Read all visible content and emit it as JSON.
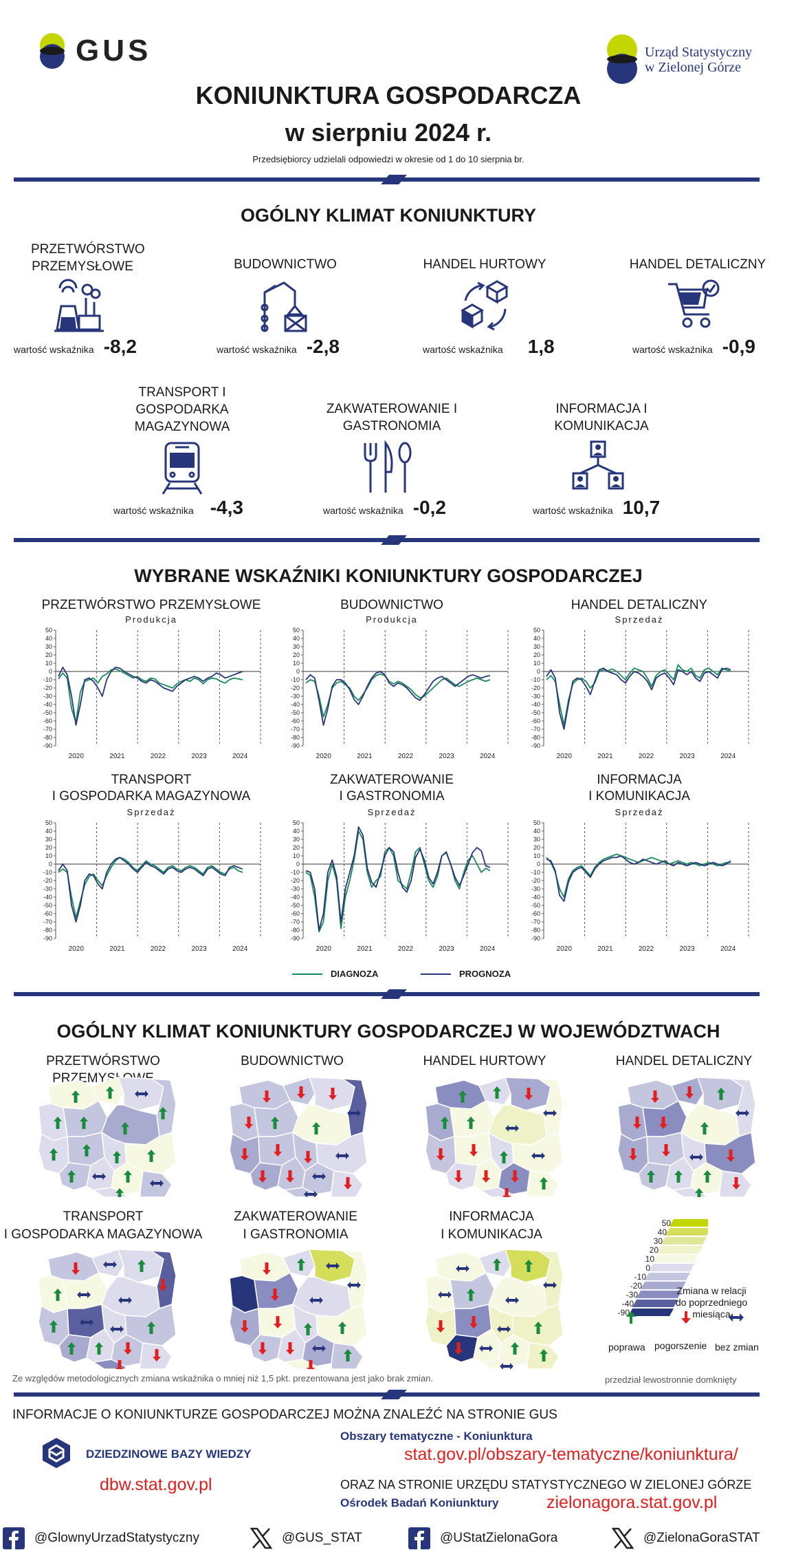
{
  "header": {
    "gus_logo_text": "GUS",
    "us_logo_line1": "Urząd Statystyczny",
    "us_logo_line2": "w Zielonej Górze",
    "title_line1": "KONIUNKTURA GOSPODARCZA",
    "title_line2": "w sierpniu 2024 r.",
    "subtitle": "Przedsiębiorcy udzielali odpowiedzi w okresie od 1 do 10 sierpnia br."
  },
  "climate": {
    "title": "OGÓLNY KLIMAT KONIUNKTURY",
    "value_label": "wartość wskaźnika",
    "sectors": [
      {
        "label": "PRZETWÓRSTWO PRZEMYSŁOWE",
        "value": "-8,2"
      },
      {
        "label": "BUDOWNICTWO",
        "value": "-2,8"
      },
      {
        "label": "HANDEL HURTOWY",
        "value": "1,8"
      },
      {
        "label": "HANDEL DETALICZNY",
        "value": "-0,9"
      },
      {
        "label": "TRANSPORT I GOSPODARKA MAGAZYNOWA",
        "value": "-4,3"
      },
      {
        "label": "ZAKWATEROWANIE I GASTRONOMIA",
        "value": "-0,2"
      },
      {
        "label": "INFORMACJA I KOMUNIKACJA",
        "value": "10,7"
      }
    ]
  },
  "indicators": {
    "title": "WYBRANE WSKAŹNIKI KONIUNKTURY GOSPODARCZEJ",
    "legend_diag": "DIAGNOZA",
    "legend_prog": "PROGNOZA",
    "charts": [
      {
        "title_l1": "PRZETWÓRSTWO PRZEMYSŁOWE",
        "title_l2": "",
        "sub": "Produkcja"
      },
      {
        "title_l1": "BUDOWNICTWO",
        "title_l2": "",
        "sub": "Produkcja"
      },
      {
        "title_l1": "HANDEL DETALICZNY",
        "title_l2": "",
        "sub": "Sprzedaż"
      },
      {
        "title_l1": "TRANSPORT",
        "title_l2": "I GOSPODARKA MAGAZYNOWA",
        "sub": "Sprzedaż"
      },
      {
        "title_l1": "ZAKWATEROWANIE",
        "title_l2": "I GASTRONOMIA",
        "sub": "Sprzedaż"
      },
      {
        "title_l1": "INFORMACJA",
        "title_l2": "I KOMUNIKACJA",
        "sub": "Sprzedaż"
      }
    ]
  },
  "chart_data": [
    {
      "type": "line",
      "title": "PRZETWÓRSTWO PRZEMYSŁOWE – Produkcja",
      "ylim": [
        -90,
        50
      ],
      "yticks": [
        50,
        40,
        30,
        20,
        10,
        0,
        -10,
        -20,
        -30,
        -40,
        -50,
        -60,
        -70,
        -80,
        -90
      ],
      "xticks": [
        "2020",
        "2021",
        "2022",
        "2023",
        "2024"
      ],
      "series": [
        {
          "name": "DIAGNOZA",
          "values": [
            -9,
            -2,
            -8,
            -45,
            -62,
            -25,
            -12,
            -10,
            -8,
            -14,
            -6,
            -3,
            2,
            3,
            1,
            -2,
            -5,
            -8,
            -6,
            -10,
            -12,
            -8,
            -9,
            -14,
            -16,
            -18,
            -20,
            -15,
            -12,
            -10,
            -12,
            -8,
            -10,
            -15,
            -10,
            -8,
            -9,
            -12,
            -14,
            -10,
            -8,
            -9,
            -10
          ]
        },
        {
          "name": "PROGNOZA",
          "values": [
            -6,
            5,
            -4,
            -30,
            -65,
            -40,
            -10,
            -8,
            -12,
            -20,
            -30,
            -10,
            0,
            5,
            4,
            0,
            -3,
            -6,
            -8,
            -12,
            -14,
            -10,
            -12,
            -16,
            -20,
            -22,
            -24,
            -18,
            -14,
            -10,
            -8,
            -6,
            -8,
            -12,
            -8,
            -6,
            -2,
            -4,
            -8,
            -6,
            -4,
            -2,
            0
          ]
        }
      ]
    },
    {
      "type": "line",
      "title": "BUDOWNICTWO – Produkcja",
      "ylim": [
        -90,
        50
      ],
      "yticks": [
        50,
        40,
        30,
        20,
        10,
        0,
        -10,
        -20,
        -30,
        -40,
        -50,
        -60,
        -70,
        -80,
        -90
      ],
      "xticks": [
        "2020",
        "2021",
        "2022",
        "2023",
        "2024"
      ],
      "series": [
        {
          "name": "DIAGNOZA",
          "values": [
            -14,
            -10,
            -12,
            -30,
            -55,
            -40,
            -20,
            -14,
            -12,
            -16,
            -20,
            -30,
            -35,
            -28,
            -20,
            -10,
            -5,
            -3,
            -5,
            -12,
            -15,
            -12,
            -14,
            -18,
            -22,
            -28,
            -32,
            -30,
            -25,
            -20,
            -15,
            -10,
            -8,
            -12,
            -16,
            -18,
            -15,
            -12,
            -10,
            -8,
            -10,
            -12,
            -10
          ]
        },
        {
          "name": "PROGNOZA",
          "values": [
            -10,
            -4,
            -8,
            -35,
            -65,
            -45,
            -18,
            -10,
            -10,
            -14,
            -22,
            -34,
            -40,
            -30,
            -18,
            -8,
            -2,
            0,
            -4,
            -14,
            -18,
            -14,
            -16,
            -20,
            -26,
            -32,
            -35,
            -28,
            -20,
            -12,
            -8,
            -6,
            -10,
            -14,
            -18,
            -14,
            -10,
            -6,
            -4,
            -6,
            -8,
            -6,
            -5
          ]
        }
      ]
    },
    {
      "type": "line",
      "title": "HANDEL DETALICZNY – Sprzedaż",
      "ylim": [
        -90,
        50
      ],
      "yticks": [
        50,
        40,
        30,
        20,
        10,
        0,
        -10,
        -20,
        -30,
        -40,
        -50,
        -60,
        -70,
        -80,
        -90
      ],
      "xticks": [
        "2020",
        "2021",
        "2022",
        "2023",
        "2024"
      ],
      "series": [
        {
          "name": "DIAGNOZA",
          "values": [
            -10,
            -5,
            -12,
            -40,
            -65,
            -35,
            -15,
            -10,
            -8,
            -12,
            -20,
            -14,
            0,
            2,
            1,
            3,
            0,
            -5,
            -10,
            -2,
            4,
            2,
            0,
            -8,
            -18,
            -5,
            0,
            2,
            -4,
            -10,
            8,
            2,
            0,
            4,
            -5,
            -8,
            2,
            4,
            0,
            -4,
            4,
            2,
            0
          ]
        },
        {
          "name": "PROGNOZA",
          "values": [
            -6,
            2,
            -8,
            -50,
            -70,
            -40,
            -12,
            -8,
            -10,
            -18,
            -28,
            -12,
            2,
            4,
            0,
            -2,
            -4,
            -10,
            -14,
            -6,
            0,
            -2,
            -6,
            -12,
            -22,
            -8,
            -4,
            -2,
            -8,
            -16,
            2,
            0,
            -4,
            0,
            -8,
            -12,
            -2,
            0,
            -4,
            -8,
            2,
            4,
            2
          ]
        }
      ]
    },
    {
      "type": "line",
      "title": "TRANSPORT I GOSPODARKA MAGAZYNOWA – Sprzedaż",
      "ylim": [
        -90,
        50
      ],
      "yticks": [
        50,
        40,
        30,
        20,
        10,
        0,
        -10,
        -20,
        -30,
        -40,
        -50,
        -60,
        -70,
        -80,
        -90
      ],
      "xticks": [
        "2020",
        "2021",
        "2022",
        "2023",
        "2024"
      ],
      "series": [
        {
          "name": "DIAGNOZA",
          "values": [
            -10,
            -6,
            -10,
            -40,
            -65,
            -45,
            -25,
            -15,
            -12,
            -20,
            -26,
            -14,
            -4,
            4,
            8,
            6,
            2,
            -4,
            -8,
            -2,
            4,
            0,
            -2,
            -6,
            -10,
            -4,
            -2,
            -6,
            -8,
            -4,
            -2,
            -4,
            -8,
            -12,
            -4,
            -2,
            -6,
            -10,
            -12,
            -6,
            -4,
            -8,
            -10
          ]
        },
        {
          "name": "PROGNOZA",
          "values": [
            -8,
            0,
            -8,
            -50,
            -70,
            -50,
            -20,
            -12,
            -14,
            -24,
            -30,
            -10,
            0,
            6,
            8,
            4,
            0,
            -6,
            -10,
            -4,
            2,
            -2,
            -4,
            -8,
            -12,
            -6,
            -4,
            -8,
            -10,
            -6,
            -4,
            -6,
            -10,
            -14,
            -6,
            -4,
            -8,
            -12,
            -14,
            -4,
            -2,
            -4,
            -6
          ]
        }
      ]
    },
    {
      "type": "line",
      "title": "ZAKWATEROWANIE I GASTRONOMIA – Sprzedaż",
      "ylim": [
        -90,
        50
      ],
      "yticks": [
        50,
        40,
        30,
        20,
        10,
        0,
        -10,
        -20,
        -30,
        -40,
        -50,
        -60,
        -70,
        -80,
        -90
      ],
      "xticks": [
        "2020",
        "2021",
        "2022",
        "2023",
        "2024"
      ],
      "series": [
        {
          "name": "DIAGNOZA",
          "values": [
            -10,
            -14,
            -40,
            -82,
            -70,
            -20,
            0,
            -20,
            -78,
            -40,
            -20,
            5,
            40,
            30,
            -10,
            -28,
            -20,
            -15,
            15,
            20,
            10,
            -20,
            -25,
            -30,
            -10,
            15,
            20,
            0,
            -20,
            -28,
            -15,
            10,
            15,
            0,
            -20,
            -30,
            -10,
            5,
            10,
            0,
            -10,
            -5,
            -8
          ]
        },
        {
          "name": "PROGNOZA",
          "values": [
            -8,
            -10,
            -30,
            -80,
            -60,
            -10,
            5,
            -15,
            -70,
            -30,
            -10,
            10,
            45,
            35,
            -5,
            -22,
            -28,
            -10,
            10,
            20,
            15,
            -10,
            -28,
            -34,
            -20,
            8,
            18,
            5,
            -16,
            -24,
            -10,
            10,
            14,
            0,
            -16,
            -26,
            -14,
            0,
            14,
            20,
            16,
            -2,
            -4
          ]
        }
      ]
    },
    {
      "type": "line",
      "title": "INFORMACJA I KOMUNIKACJA – Sprzedaż",
      "ylim": [
        -90,
        50
      ],
      "yticks": [
        50,
        40,
        30,
        20,
        10,
        0,
        -10,
        -20,
        -30,
        -40,
        -50,
        -60,
        -70,
        -80,
        -90
      ],
      "xticks": [
        "2020",
        "2021",
        "2022",
        "2023",
        "2024"
      ],
      "series": [
        {
          "name": "DIAGNOZA",
          "values": [
            8,
            2,
            -10,
            -30,
            -40,
            -18,
            -8,
            -4,
            -2,
            -8,
            -14,
            -4,
            2,
            6,
            8,
            10,
            12,
            10,
            8,
            6,
            4,
            2,
            4,
            6,
            8,
            6,
            4,
            2,
            0,
            2,
            4,
            2,
            0,
            2,
            0,
            -2,
            0,
            2,
            0,
            -2,
            0,
            2,
            2
          ]
        },
        {
          "name": "PROGNOZA",
          "values": [
            6,
            4,
            -8,
            -38,
            -45,
            -22,
            -10,
            -6,
            -4,
            -10,
            -16,
            -6,
            0,
            4,
            6,
            8,
            8,
            10,
            6,
            2,
            0,
            2,
            6,
            4,
            2,
            0,
            2,
            4,
            0,
            -2,
            2,
            0,
            -2,
            0,
            2,
            0,
            -2,
            0,
            2,
            0,
            -2,
            0,
            4
          ]
        }
      ]
    }
  ],
  "voivodeships": {
    "title": "OGÓLNY KLIMAT KONIUNKTURY GOSPODARCZEJ W WOJEWÓDZTWACH",
    "maps": [
      {
        "title_l1": "PRZETWÓRSTWO PRZEMYSŁOWE",
        "title_l2": ""
      },
      {
        "title_l1": "BUDOWNICTWO",
        "title_l2": ""
      },
      {
        "title_l1": "HANDEL HURTOWY",
        "title_l2": ""
      },
      {
        "title_l1": "HANDEL DETALICZNY",
        "title_l2": ""
      },
      {
        "title_l1": "TRANSPORT",
        "title_l2": "I GOSPODARKA MAGAZYNOWA"
      },
      {
        "title_l1": "ZAKWATEROWANIE",
        "title_l2": "I GASTRONOMIA"
      },
      {
        "title_l1": "INFORMACJA",
        "title_l2": "I KOMUNIKACJA"
      }
    ],
    "scale": [
      "50",
      "40",
      "30",
      "20",
      "10",
      "0",
      "-10",
      "-20",
      "-30",
      "-40",
      "-90"
    ],
    "legend_title_l1": "Zmiana w relacji",
    "legend_title_l2": "do poprzedniego miesiąca",
    "legend_up": "poprawa",
    "legend_down": "pogorszenie",
    "legend_none": "bez zmian",
    "footnote": "Ze względów metodologicznych zmiana wskaźnika o mniej niż 1,5 pkt. prezentowana jest jako brak zmian.",
    "interval_note": "przedział lewostronnie domknięty",
    "colors": {
      "up": "#1a8a3c",
      "down": "#e02020",
      "none": "#27367a"
    }
  },
  "footer": {
    "info_line": "INFORMACJE O KONIUNKTURZE GOSPODARCZEJ MOŻNA ZNALEŹĆ NA STRONIE GUS",
    "dbw_label": "DZIEDZINOWE BAZY WIEDZY",
    "dbw_url": "dbw.stat.gov.pl",
    "topic_label": "Obszary tematyczne - Koniunktura",
    "topic_url": "stat.gov.pl/obszary-tematyczne/koniunktura/",
    "us_line": "ORAZ NA STRONIE URZĘDU STATYSTYCZNEGO W ZIELONEJ GÓRZE",
    "obk_label": "Ośrodek Badań Koniunktury",
    "us_url": "zielonagora.stat.gov.pl",
    "social": [
      "@GlownyUrzadStatystyczny",
      "@GUS_STAT",
      "@UStatZielonaGora",
      "@ZielonaGoraSTAT"
    ]
  }
}
